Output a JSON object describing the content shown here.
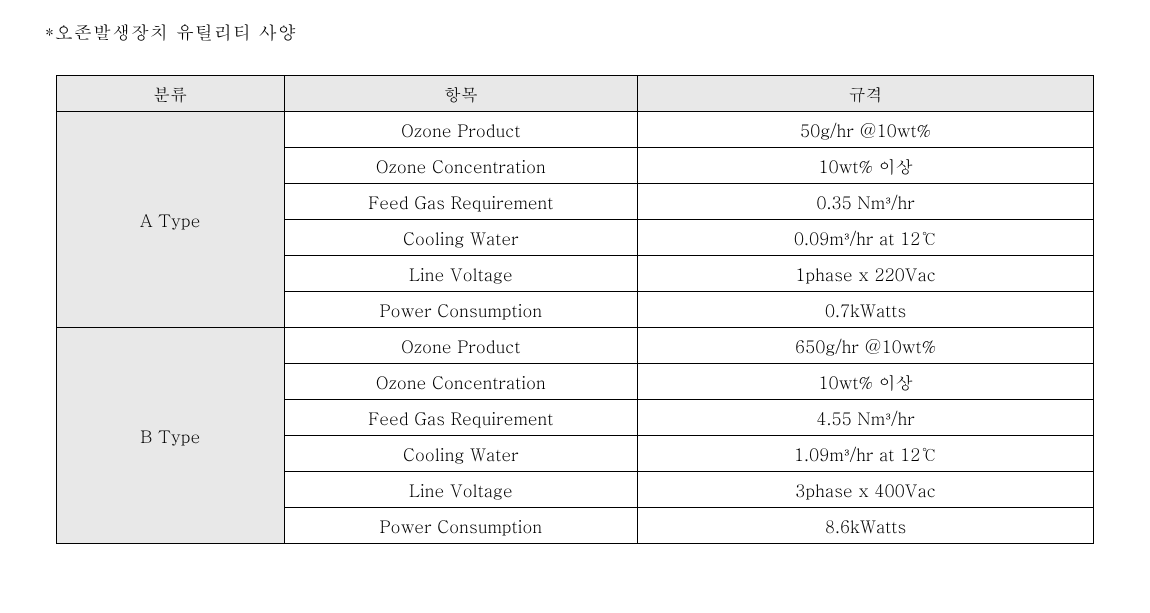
{
  "title": "*오존발생장치 유틸리티 사양",
  "table": {
    "columns": [
      "분류",
      "항목",
      "규격"
    ],
    "colors": {
      "header_bg": "#e8e8e8",
      "category_bg": "#e8e8e8",
      "border": "#000000",
      "background": "#ffffff",
      "text": "#000000"
    },
    "fontsize": 17,
    "col_widths_pct": [
      22,
      34,
      44
    ],
    "groups": [
      {
        "category": "A Type",
        "rows": [
          {
            "item": "Ozone Product",
            "spec": "50g/hr @10wt%"
          },
          {
            "item": "Ozone Concentration",
            "spec": "10wt% 이상"
          },
          {
            "item": "Feed Gas Requirement",
            "spec": "0.35 Nm³/hr"
          },
          {
            "item": "Cooling Water",
            "spec": "0.09m³/hr at 12℃"
          },
          {
            "item": "Line Voltage",
            "spec": "1phase x 220Vac"
          },
          {
            "item": "Power Consumption",
            "spec": "0.7kWatts"
          }
        ]
      },
      {
        "category": "B Type",
        "rows": [
          {
            "item": "Ozone Product",
            "spec": "650g/hr @10wt%"
          },
          {
            "item": "Ozone Concentration",
            "spec": "10wt% 이상"
          },
          {
            "item": "Feed Gas Requirement",
            "spec": "4.55 Nm³/hr"
          },
          {
            "item": "Cooling Water",
            "spec": "1.09m³/hr at 12℃"
          },
          {
            "item": "Line Voltage",
            "spec": "3phase x 400Vac"
          },
          {
            "item": "Power Consumption",
            "spec": "8.6kWatts"
          }
        ]
      }
    ]
  }
}
